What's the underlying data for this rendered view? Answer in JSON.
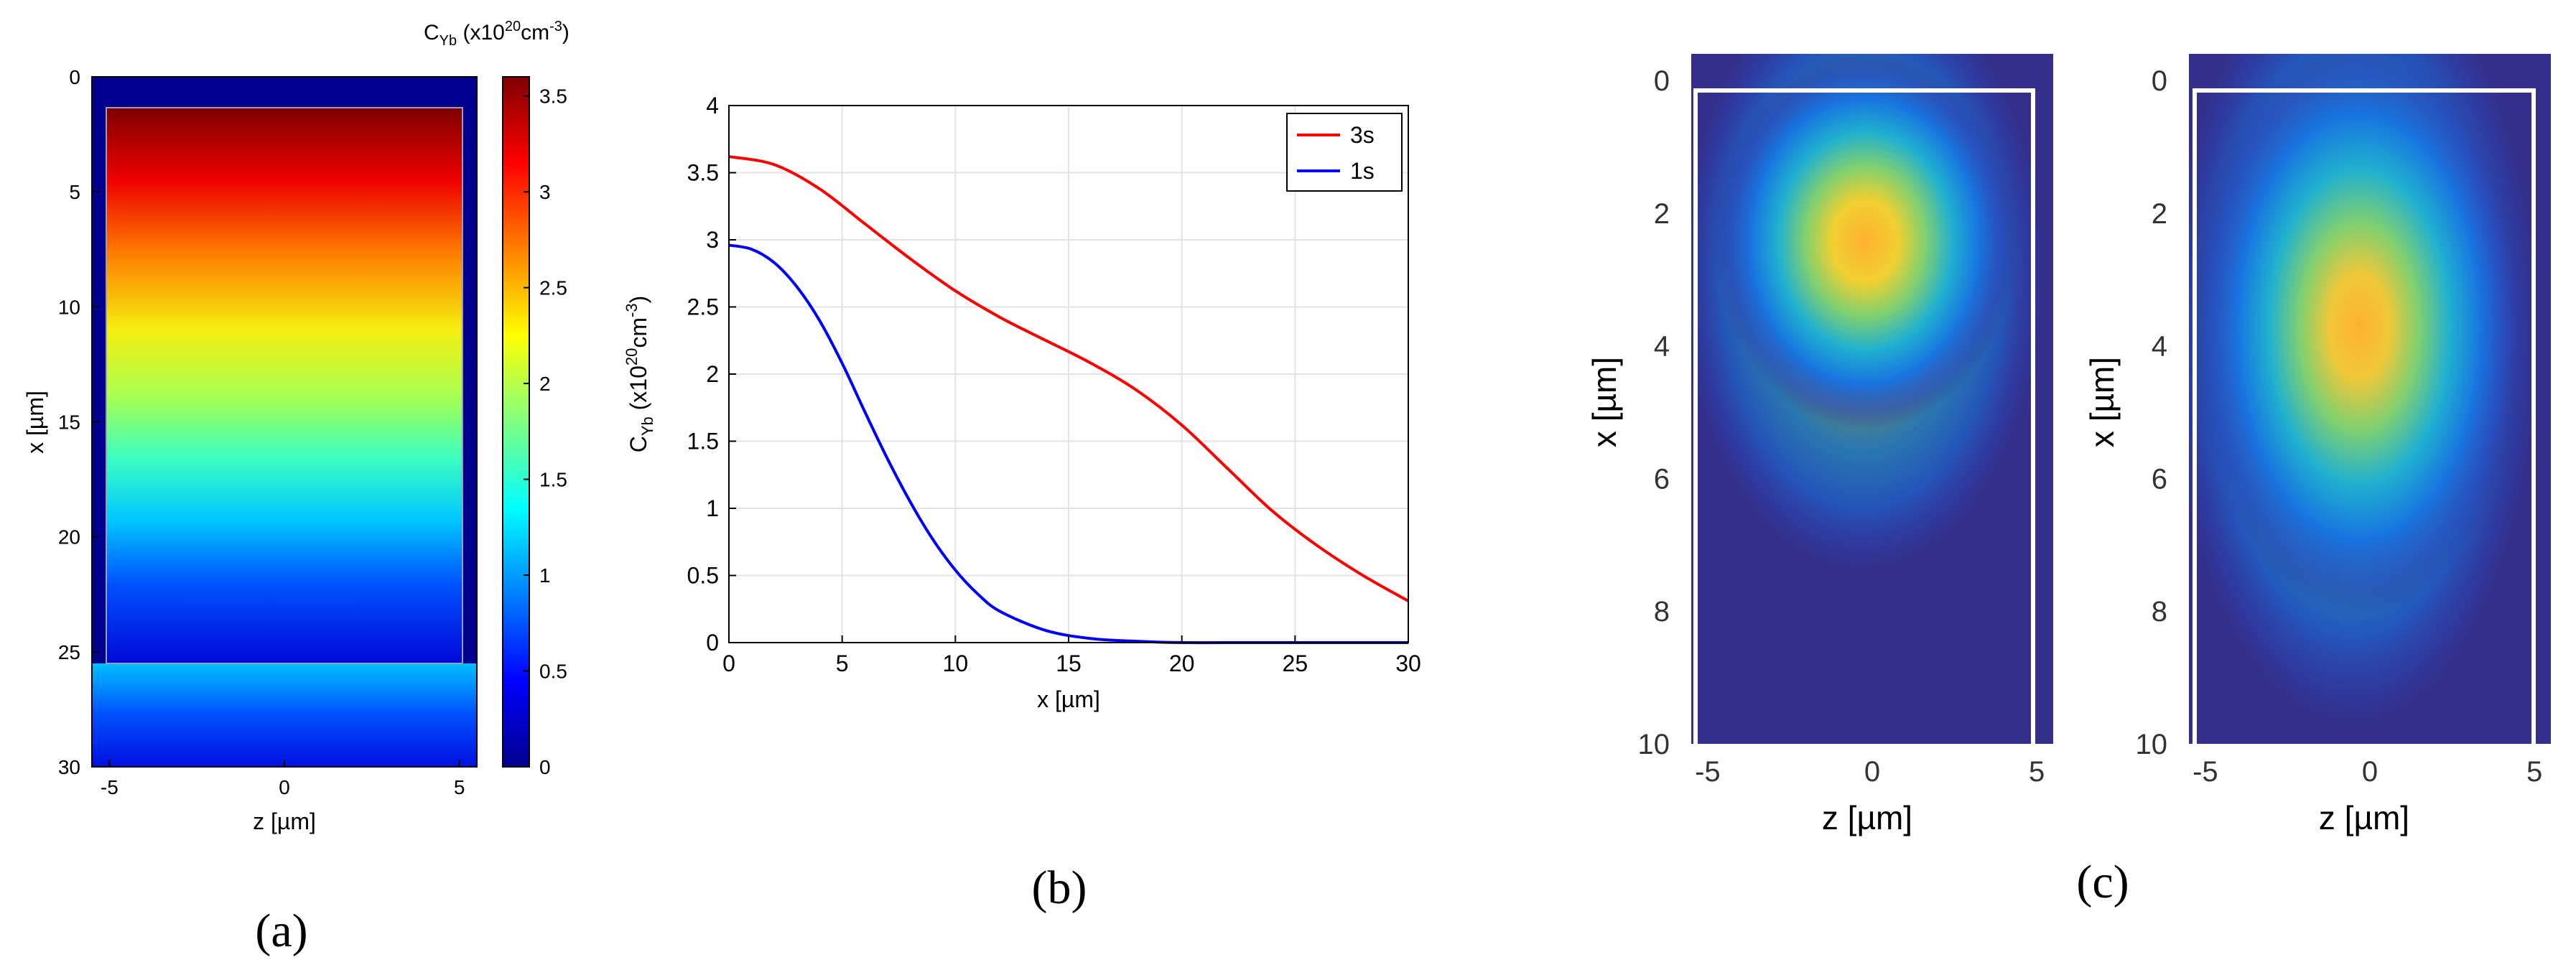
{
  "chart_data": [
    {
      "type": "heatmap",
      "panel_label": "(a)",
      "xlabel": "z [µm]",
      "ylabel": "x [µm]",
      "xlim": [
        -5.5,
        5.5
      ],
      "ylim": [
        30,
        0
      ],
      "xticks": [
        "-5",
        "0",
        "5"
      ],
      "yticks": [
        "0",
        "5",
        "10",
        "15",
        "20",
        "25",
        "30"
      ],
      "colorbar": {
        "title_main": "C",
        "title_sub": "Yb",
        "title_unit_pre": " (x10",
        "title_unit_exp": "20",
        "title_unit_mid": "cm",
        "title_unit_exp2": "-3",
        "title_unit_post": ")",
        "range": [
          0,
          3.6
        ],
        "ticks": [
          "0",
          "0.5",
          "1",
          "1.5",
          "2",
          "2.5",
          "3",
          "3.5"
        ]
      },
      "inner_region": {
        "z": [
          -5,
          5
        ],
        "x": [
          1,
          25
        ]
      }
    },
    {
      "type": "line",
      "panel_label": "(b)",
      "xlabel": "x [µm]",
      "ylabel_main": "C",
      "ylabel_sub": "Yb",
      "ylabel_unit_pre": " (x10",
      "ylabel_unit_exp": "20",
      "ylabel_unit_mid": "cm",
      "ylabel_unit_exp2": "-3",
      "ylabel_unit_post": ")",
      "xlim": [
        0,
        30
      ],
      "ylim": [
        0,
        4
      ],
      "xticks": [
        "0",
        "5",
        "10",
        "15",
        "20",
        "25",
        "30"
      ],
      "yticks": [
        "0",
        "0.5",
        "1",
        "1.5",
        "2",
        "2.5",
        "3",
        "3.5",
        "4"
      ],
      "grid": true,
      "legend_position": "top-right",
      "series": [
        {
          "name": "3s",
          "color": "#ff0000",
          "x": [
            0,
            2,
            4,
            6,
            8,
            10,
            12,
            14,
            16,
            18,
            20,
            22,
            24,
            26,
            28,
            30
          ],
          "y": [
            3.62,
            3.56,
            3.38,
            3.12,
            2.86,
            2.62,
            2.42,
            2.25,
            2.08,
            1.88,
            1.62,
            1.3,
            0.98,
            0.72,
            0.5,
            0.31
          ]
        },
        {
          "name": "1s",
          "color": "#0000ff",
          "x": [
            0,
            1,
            2,
            3,
            4,
            5,
            6,
            7,
            8,
            9,
            10,
            11,
            12,
            14,
            16,
            18,
            20,
            22,
            25,
            30
          ],
          "y": [
            2.96,
            2.93,
            2.83,
            2.65,
            2.4,
            2.08,
            1.72,
            1.37,
            1.05,
            0.77,
            0.54,
            0.36,
            0.23,
            0.09,
            0.03,
            0.01,
            0.0,
            0.0,
            0.0,
            0.0
          ]
        }
      ]
    },
    {
      "type": "heatmap",
      "panel_label": "(c)",
      "subplots": [
        {
          "xlabel": "z [µm]",
          "ylabel": "x [µm]",
          "xlim": [
            -5.5,
            5.5
          ],
          "ylim": [
            10,
            -0.4
          ],
          "xticks": [
            "-5",
            "0",
            "5"
          ],
          "yticks": [
            "0",
            "2",
            "4",
            "6",
            "8",
            "10"
          ],
          "hotspot": {
            "z": 0,
            "x": 2.6
          }
        },
        {
          "xlabel": "z [µm]",
          "ylabel": "x [µm]",
          "xlim": [
            -5.5,
            5.5
          ],
          "ylim": [
            10,
            -0.4
          ],
          "xticks": [
            "-5",
            "0",
            "5"
          ],
          "yticks": [
            "0",
            "2",
            "4",
            "6",
            "8",
            "10"
          ],
          "hotspot": {
            "z": -0.2,
            "x": 3.8
          }
        }
      ]
    }
  ]
}
